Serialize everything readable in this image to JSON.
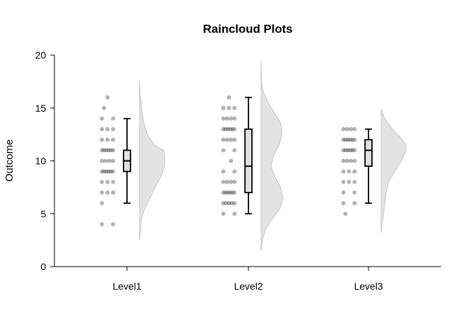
{
  "chart_data": {
    "type": "raincloud",
    "title": "Raincloud Plots",
    "xlabel": "",
    "ylabel": "Outcome",
    "ylim": [
      0,
      20
    ],
    "yticks": [
      0,
      5,
      10,
      15,
      20
    ],
    "grid": false,
    "categories": [
      "Level1",
      "Level2",
      "Level3"
    ],
    "colors": {
      "points": "#000000",
      "box_fill": "#e0e0e0",
      "cloud_fill": "#e2e2e2",
      "cloud_stroke": "#bdbdbd",
      "axis": "#000000"
    },
    "groups": [
      {
        "name": "Level1",
        "box": {
          "min": 6,
          "q1": 9,
          "median": 10,
          "q3": 11,
          "max": 14
        },
        "points": [
          {
            "y": 16,
            "n": 1
          },
          {
            "y": 15,
            "n": 1
          },
          {
            "y": 14,
            "n": 2
          },
          {
            "y": 13,
            "n": 3
          },
          {
            "y": 12,
            "n": 3
          },
          {
            "y": 11,
            "n": 6
          },
          {
            "y": 10,
            "n": 4
          },
          {
            "y": 9,
            "n": 6
          },
          {
            "y": 8,
            "n": 3
          },
          {
            "y": 7,
            "n": 3
          },
          {
            "y": 6,
            "n": 1
          },
          {
            "y": 4,
            "n": 2
          }
        ],
        "density": [
          {
            "y": 2.5,
            "d": 0.0
          },
          {
            "y": 3.5,
            "d": 0.04
          },
          {
            "y": 4.5,
            "d": 0.08
          },
          {
            "y": 5.5,
            "d": 0.2
          },
          {
            "y": 6.5,
            "d": 0.42
          },
          {
            "y": 7.5,
            "d": 0.62
          },
          {
            "y": 8.5,
            "d": 0.85
          },
          {
            "y": 9.5,
            "d": 1.0
          },
          {
            "y": 10.0,
            "d": 1.0
          },
          {
            "y": 10.5,
            "d": 1.0
          },
          {
            "y": 11.0,
            "d": 0.95
          },
          {
            "y": 11.5,
            "d": 0.6
          },
          {
            "y": 12.5,
            "d": 0.3
          },
          {
            "y": 13.5,
            "d": 0.18
          },
          {
            "y": 14.5,
            "d": 0.1
          },
          {
            "y": 15.5,
            "d": 0.06
          },
          {
            "y": 16.5,
            "d": 0.02
          },
          {
            "y": 17.6,
            "d": 0.0
          }
        ]
      },
      {
        "name": "Level2",
        "box": {
          "min": 5,
          "q1": 7,
          "median": 9.5,
          "q3": 13,
          "max": 16
        },
        "points": [
          {
            "y": 16,
            "n": 1
          },
          {
            "y": 15,
            "n": 3
          },
          {
            "y": 14,
            "n": 4
          },
          {
            "y": 13,
            "n": 6
          },
          {
            "y": 12,
            "n": 4
          },
          {
            "y": 11,
            "n": 2
          },
          {
            "y": 10,
            "n": 1
          },
          {
            "y": 9,
            "n": 2
          },
          {
            "y": 8,
            "n": 4
          },
          {
            "y": 7,
            "n": 6
          },
          {
            "y": 6,
            "n": 5
          },
          {
            "y": 5,
            "n": 2
          }
        ],
        "density": [
          {
            "y": 1.5,
            "d": 0.0
          },
          {
            "y": 2.5,
            "d": 0.06
          },
          {
            "y": 3.5,
            "d": 0.18
          },
          {
            "y": 4.5,
            "d": 0.45
          },
          {
            "y": 5.5,
            "d": 0.75
          },
          {
            "y": 6.5,
            "d": 0.88
          },
          {
            "y": 7.5,
            "d": 0.78
          },
          {
            "y": 8.5,
            "d": 0.55
          },
          {
            "y": 9.5,
            "d": 0.4
          },
          {
            "y": 10.5,
            "d": 0.5
          },
          {
            "y": 11.5,
            "d": 0.72
          },
          {
            "y": 12.5,
            "d": 0.84
          },
          {
            "y": 13.5,
            "d": 0.8
          },
          {
            "y": 14.5,
            "d": 0.55
          },
          {
            "y": 15.5,
            "d": 0.28
          },
          {
            "y": 16.5,
            "d": 0.1
          },
          {
            "y": 17.5,
            "d": 0.02
          },
          {
            "y": 19.5,
            "d": 0.0
          }
        ]
      },
      {
        "name": "Level3",
        "box": {
          "min": 6,
          "q1": 9.5,
          "median": 11,
          "q3": 12,
          "max": 13
        },
        "points": [
          {
            "y": 13,
            "n": 4
          },
          {
            "y": 12,
            "n": 6
          },
          {
            "y": 11,
            "n": 6
          },
          {
            "y": 10,
            "n": 4
          },
          {
            "y": 9,
            "n": 3
          },
          {
            "y": 8,
            "n": 3
          },
          {
            "y": 7,
            "n": 2
          },
          {
            "y": 6,
            "n": 2
          },
          {
            "y": 5,
            "n": 1
          }
        ],
        "density": [
          {
            "y": 3.2,
            "d": 0.0
          },
          {
            "y": 4.0,
            "d": 0.04
          },
          {
            "y": 5.0,
            "d": 0.1
          },
          {
            "y": 6.0,
            "d": 0.15
          },
          {
            "y": 7.0,
            "d": 0.2
          },
          {
            "y": 8.0,
            "d": 0.3
          },
          {
            "y": 9.0,
            "d": 0.55
          },
          {
            "y": 10.0,
            "d": 0.82
          },
          {
            "y": 11.0,
            "d": 1.0
          },
          {
            "y": 11.5,
            "d": 1.0
          },
          {
            "y": 12.0,
            "d": 0.85
          },
          {
            "y": 13.0,
            "d": 0.45
          },
          {
            "y": 14.0,
            "d": 0.15
          },
          {
            "y": 14.9,
            "d": 0.0
          }
        ]
      }
    ]
  }
}
